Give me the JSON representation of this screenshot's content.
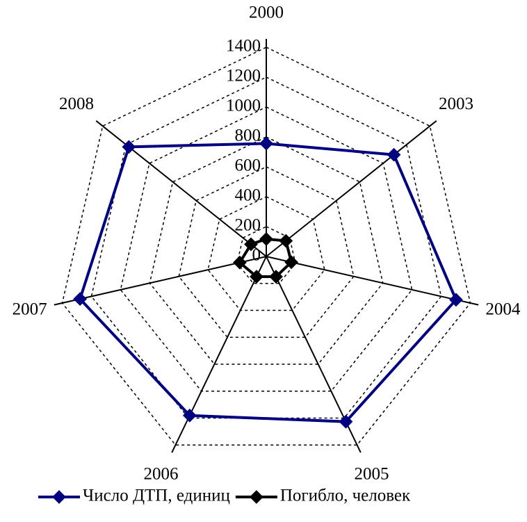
{
  "chart_data": {
    "type": "radar",
    "categories": [
      "2000",
      "2003",
      "2004",
      "2005",
      "2006",
      "2007",
      "2008"
    ],
    "series": [
      {
        "name": "Число ДТП, единиц",
        "color": "#000080",
        "values": [
          756,
          1092,
          1302,
          1227,
          1181,
          1278,
          1176
        ]
      },
      {
        "name": "Погибло, человек",
        "color": "#000000",
        "values": [
          117,
          168,
          172,
          150,
          150,
          182,
          131
        ]
      }
    ],
    "ylim": [
      0,
      1400
    ],
    "yticks": [
      0,
      200,
      400,
      600,
      800,
      1000,
      1200,
      1400
    ],
    "grid": true,
    "legend": "bottom"
  }
}
